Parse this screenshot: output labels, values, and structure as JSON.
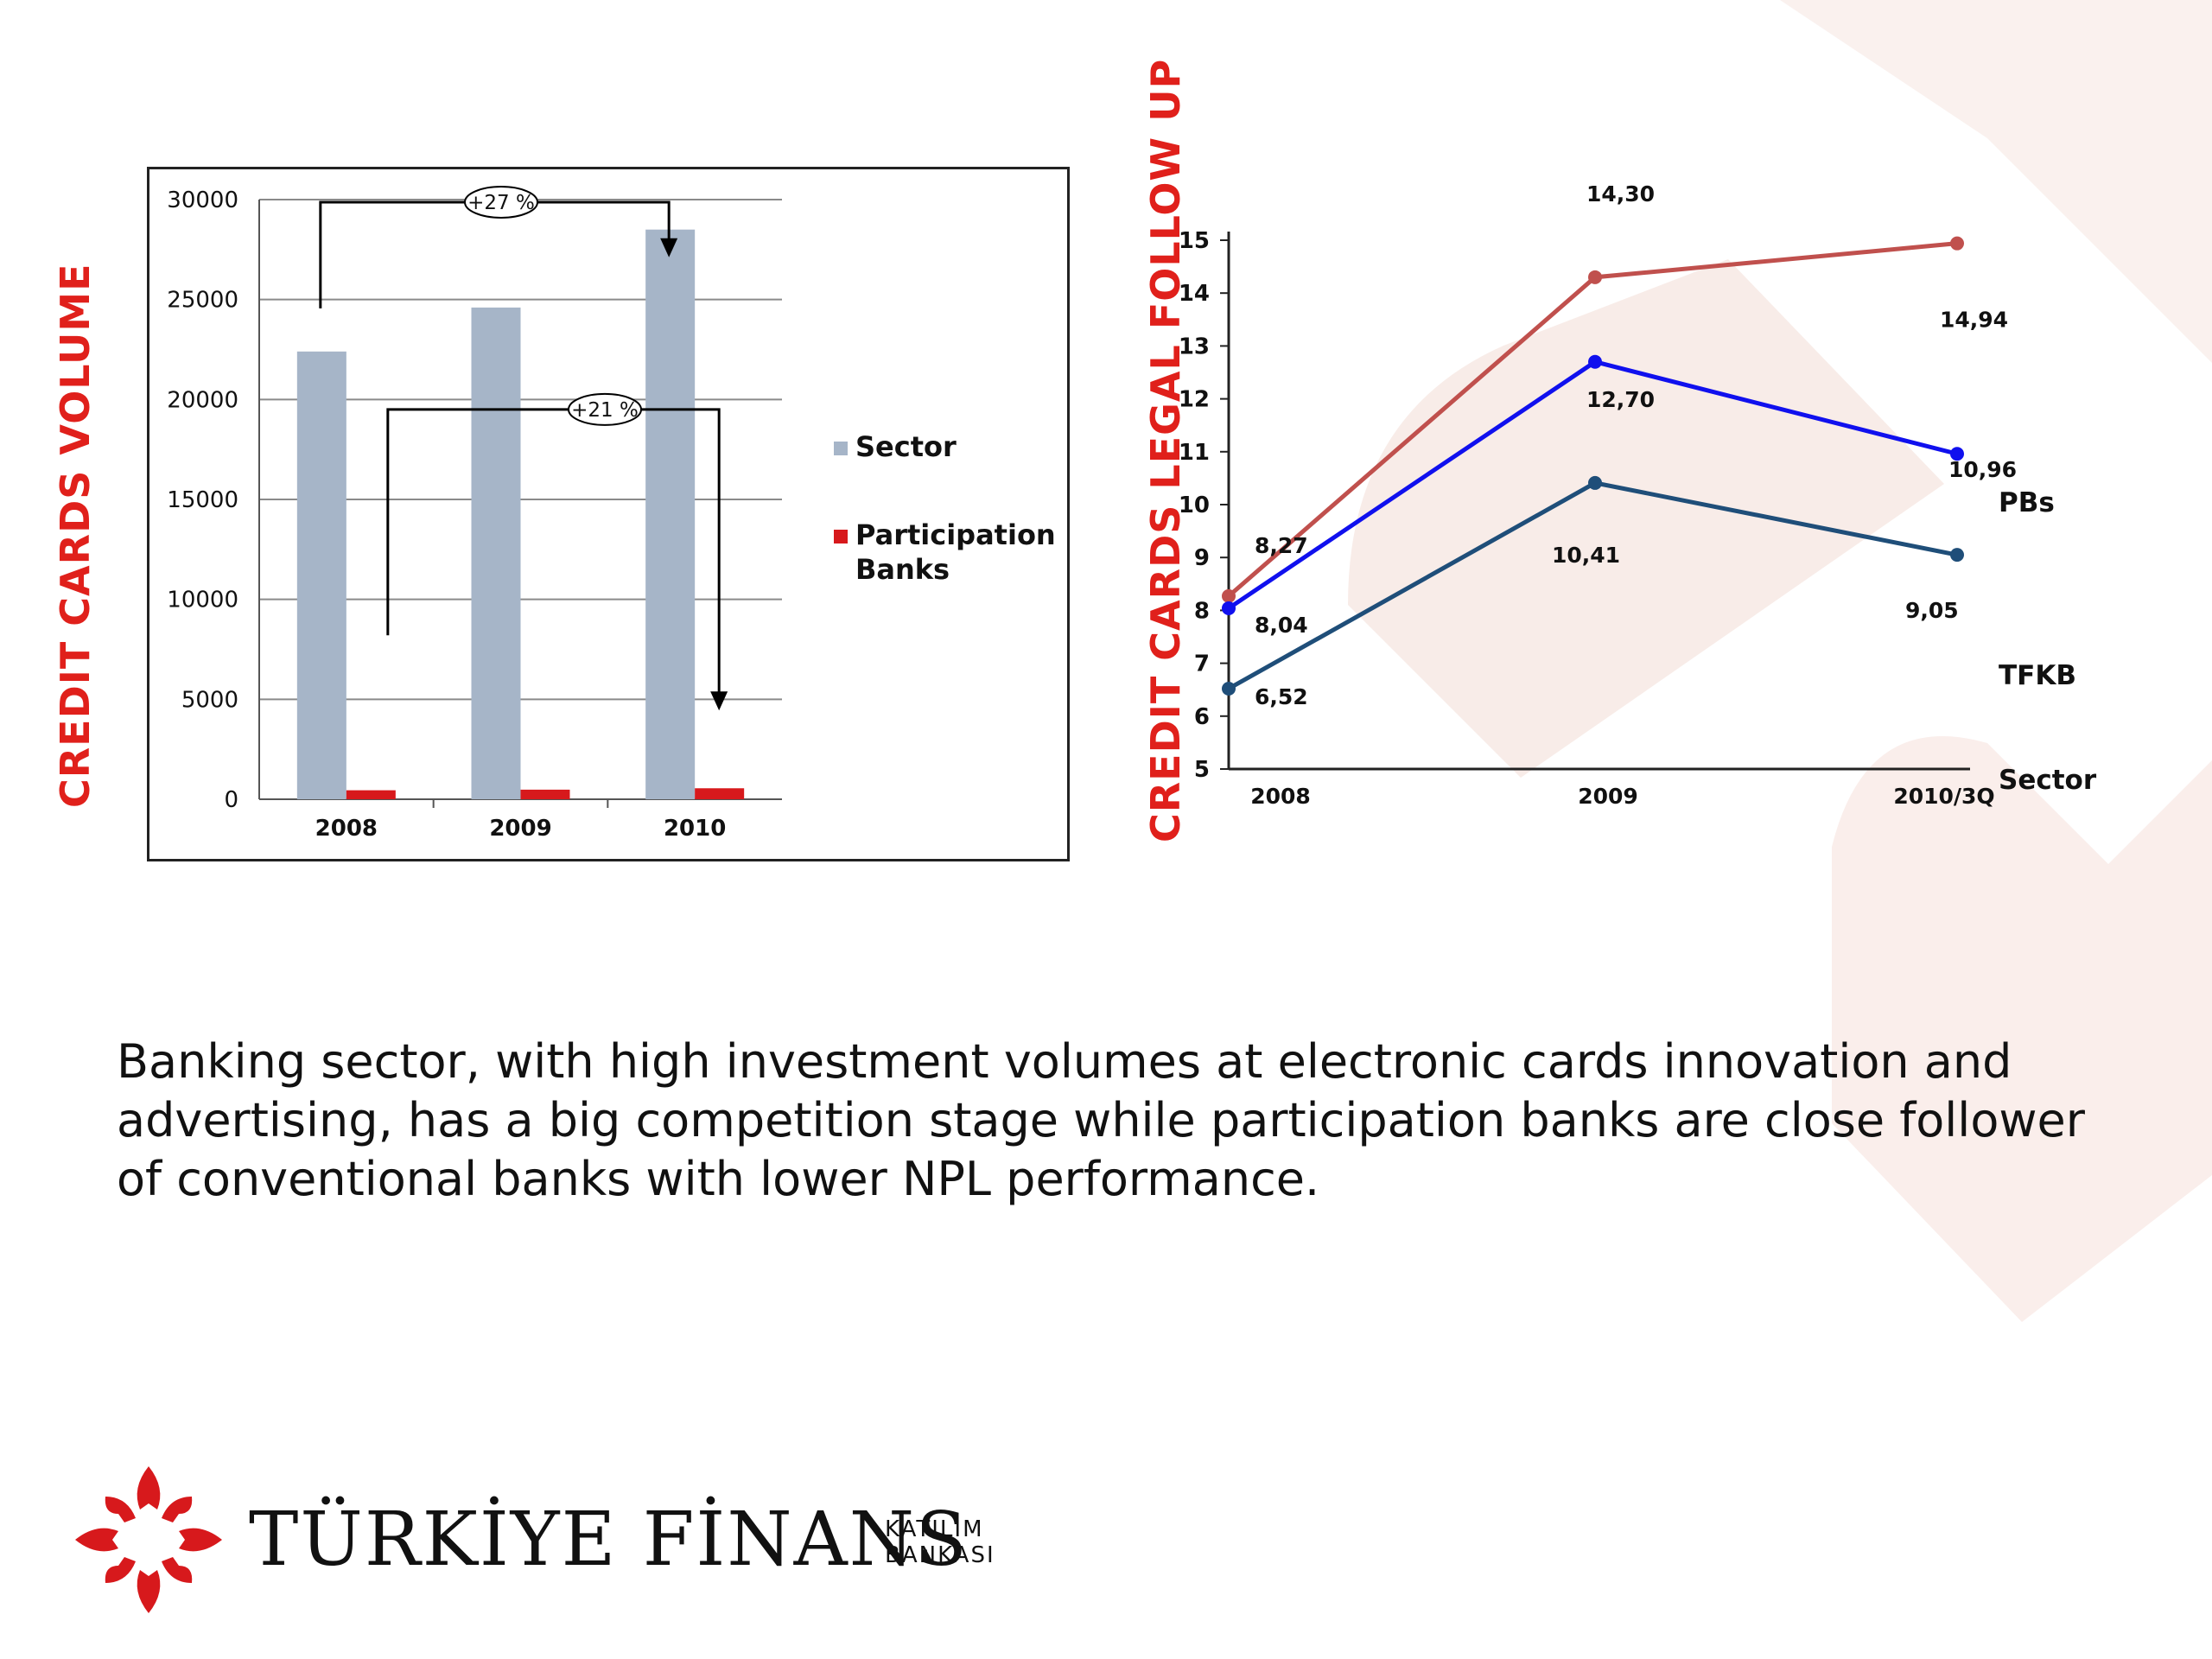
{
  "chart_data": [
    {
      "type": "bar",
      "title": "CREDIT CARDS VOLUME",
      "categories": [
        "2008",
        "2009",
        "2010"
      ],
      "series": [
        {
          "name": "Sector",
          "values": [
            22400,
            24600,
            28500
          ],
          "color": "#a6b5c8"
        },
        {
          "name": "Participation Banks",
          "values": [
            450,
            480,
            550
          ],
          "color": "#d7191c"
        }
      ],
      "yticks": [
        "0",
        "5000",
        "10000",
        "15000",
        "20000",
        "25000",
        "30000"
      ],
      "ylim": [
        0,
        30000
      ],
      "grid": true,
      "legend": "right",
      "annotations": [
        "+27 %",
        "+21 %"
      ]
    },
    {
      "type": "line",
      "title": "CREDIT CARDS LEGAL FOLLOW UP",
      "categories": [
        "2008",
        "2009",
        "2010/3Q"
      ],
      "series": [
        {
          "name": "PBs",
          "values": [
            8.27,
            14.3,
            14.94
          ],
          "color": "#c0504d",
          "labels": [
            "8,27",
            "14,30",
            "14,94"
          ]
        },
        {
          "name": "TFKB",
          "values": [
            8.04,
            12.7,
            10.96
          ],
          "color": "#1010ee",
          "labels": [
            "8,04",
            "12,70",
            "10,96"
          ]
        },
        {
          "name": "Sector",
          "values": [
            6.52,
            10.41,
            9.05
          ],
          "color": "#1f4e79",
          "labels": [
            "6,52",
            "10,41",
            "9,05"
          ]
        }
      ],
      "yticks": [
        "5",
        "6",
        "7",
        "8",
        "9",
        "10",
        "11",
        "12",
        "13",
        "14",
        "15"
      ],
      "ylim": [
        5,
        15
      ],
      "grid": false,
      "legend": "right"
    }
  ],
  "caption": "Banking sector, with high investment volumes at electronic cards innovation and advertising, has a big competition stage while participation banks are close follower of conventional banks with lower NPL performance.",
  "brand": {
    "name": "TÜRKİYE FİNANS",
    "sub_line1": "KATILIM",
    "sub_line2": "BANKASI",
    "logo_color": "#d7191c"
  }
}
